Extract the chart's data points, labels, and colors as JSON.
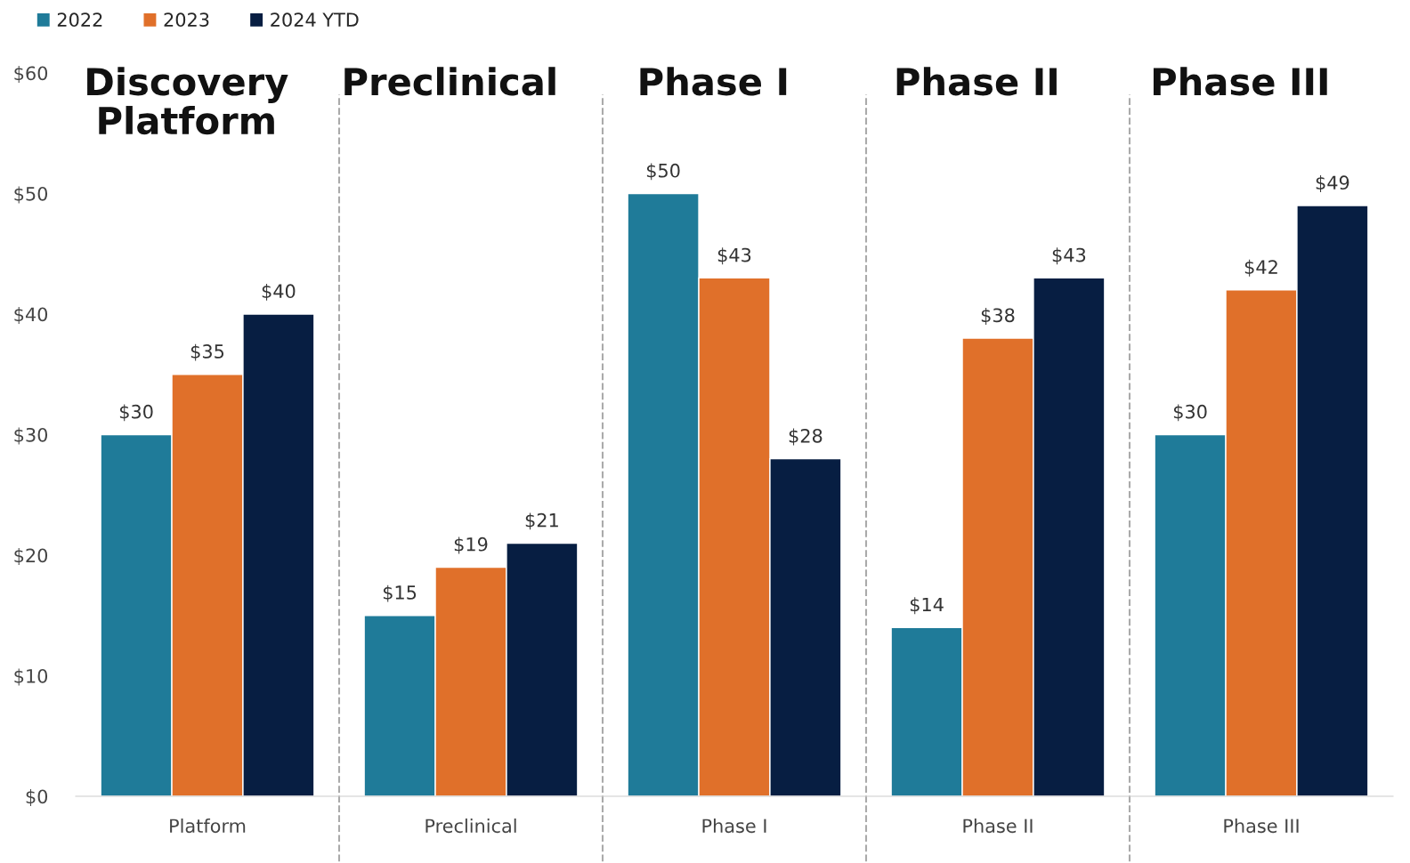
{
  "chart_data": {
    "type": "bar",
    "categories": [
      "Platform",
      "Preclinical",
      "Phase I",
      "Phase II",
      "Phase III"
    ],
    "series": [
      {
        "name": "2022",
        "color": "#1f7b99",
        "values": [
          30,
          15,
          50,
          14,
          30
        ],
        "value_labels": [
          "$30",
          "$15",
          "$50",
          "$14",
          "$30"
        ]
      },
      {
        "name": "2023",
        "color": "#e0702a",
        "values": [
          35,
          19,
          43,
          38,
          42
        ],
        "value_labels": [
          "$35",
          "$19",
          "$43",
          "$38",
          "$42"
        ]
      },
      {
        "name": "2024 YTD",
        "color": "#071e42",
        "values": [
          40,
          21,
          28,
          43,
          49
        ],
        "value_labels": [
          "$40",
          "$21",
          "$28",
          "$43",
          "$49"
        ]
      }
    ],
    "ylim": [
      0,
      60
    ],
    "yticks": [
      {
        "value": 0,
        "label": "$0"
      },
      {
        "value": 10,
        "label": "$10"
      },
      {
        "value": 20,
        "label": "$20"
      },
      {
        "value": 30,
        "label": "$30"
      },
      {
        "value": 40,
        "label": "$40"
      },
      {
        "value": 50,
        "label": "$50"
      },
      {
        "value": 60,
        "label": "$60"
      }
    ],
    "annotations": [
      "Discovery\nPlatform",
      "Preclinical",
      "Phase I",
      "Phase II",
      "Phase III"
    ],
    "grid": false,
    "legend": "top left"
  }
}
